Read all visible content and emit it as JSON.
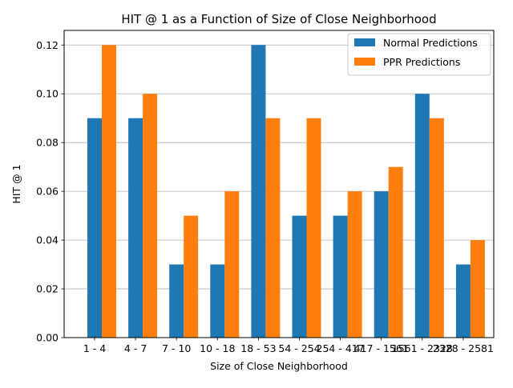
{
  "chart_data": {
    "type": "bar",
    "title": "HIT @ 1 as a Function of Size of Close Neighborhood",
    "xlabel": "Size of Close Neighborhood",
    "ylabel": "HIT @ 1",
    "categories": [
      "1 - 4",
      "4 - 7",
      "7 - 10",
      "10 - 18",
      "18 - 53",
      "54 - 254",
      "254 - 417",
      "417 - 1561",
      "1561 - 2328",
      "2328 - 2581"
    ],
    "series": [
      {
        "name": "Normal Predictions",
        "color": "#1f77b4",
        "values": [
          0.09,
          0.09,
          0.03,
          0.03,
          0.12,
          0.05,
          0.05,
          0.06,
          0.1,
          0.03
        ]
      },
      {
        "name": "PPR Predictions",
        "color": "#ff7f0e",
        "values": [
          0.12,
          0.1,
          0.05,
          0.06,
          0.09,
          0.09,
          0.06,
          0.07,
          0.09,
          0.04
        ]
      }
    ],
    "ylim": [
      0,
      0.126
    ],
    "yticks": [
      "0.00",
      "0.02",
      "0.04",
      "0.06",
      "0.08",
      "0.10",
      "0.12"
    ],
    "grid": "y",
    "legend": "upper-right"
  }
}
